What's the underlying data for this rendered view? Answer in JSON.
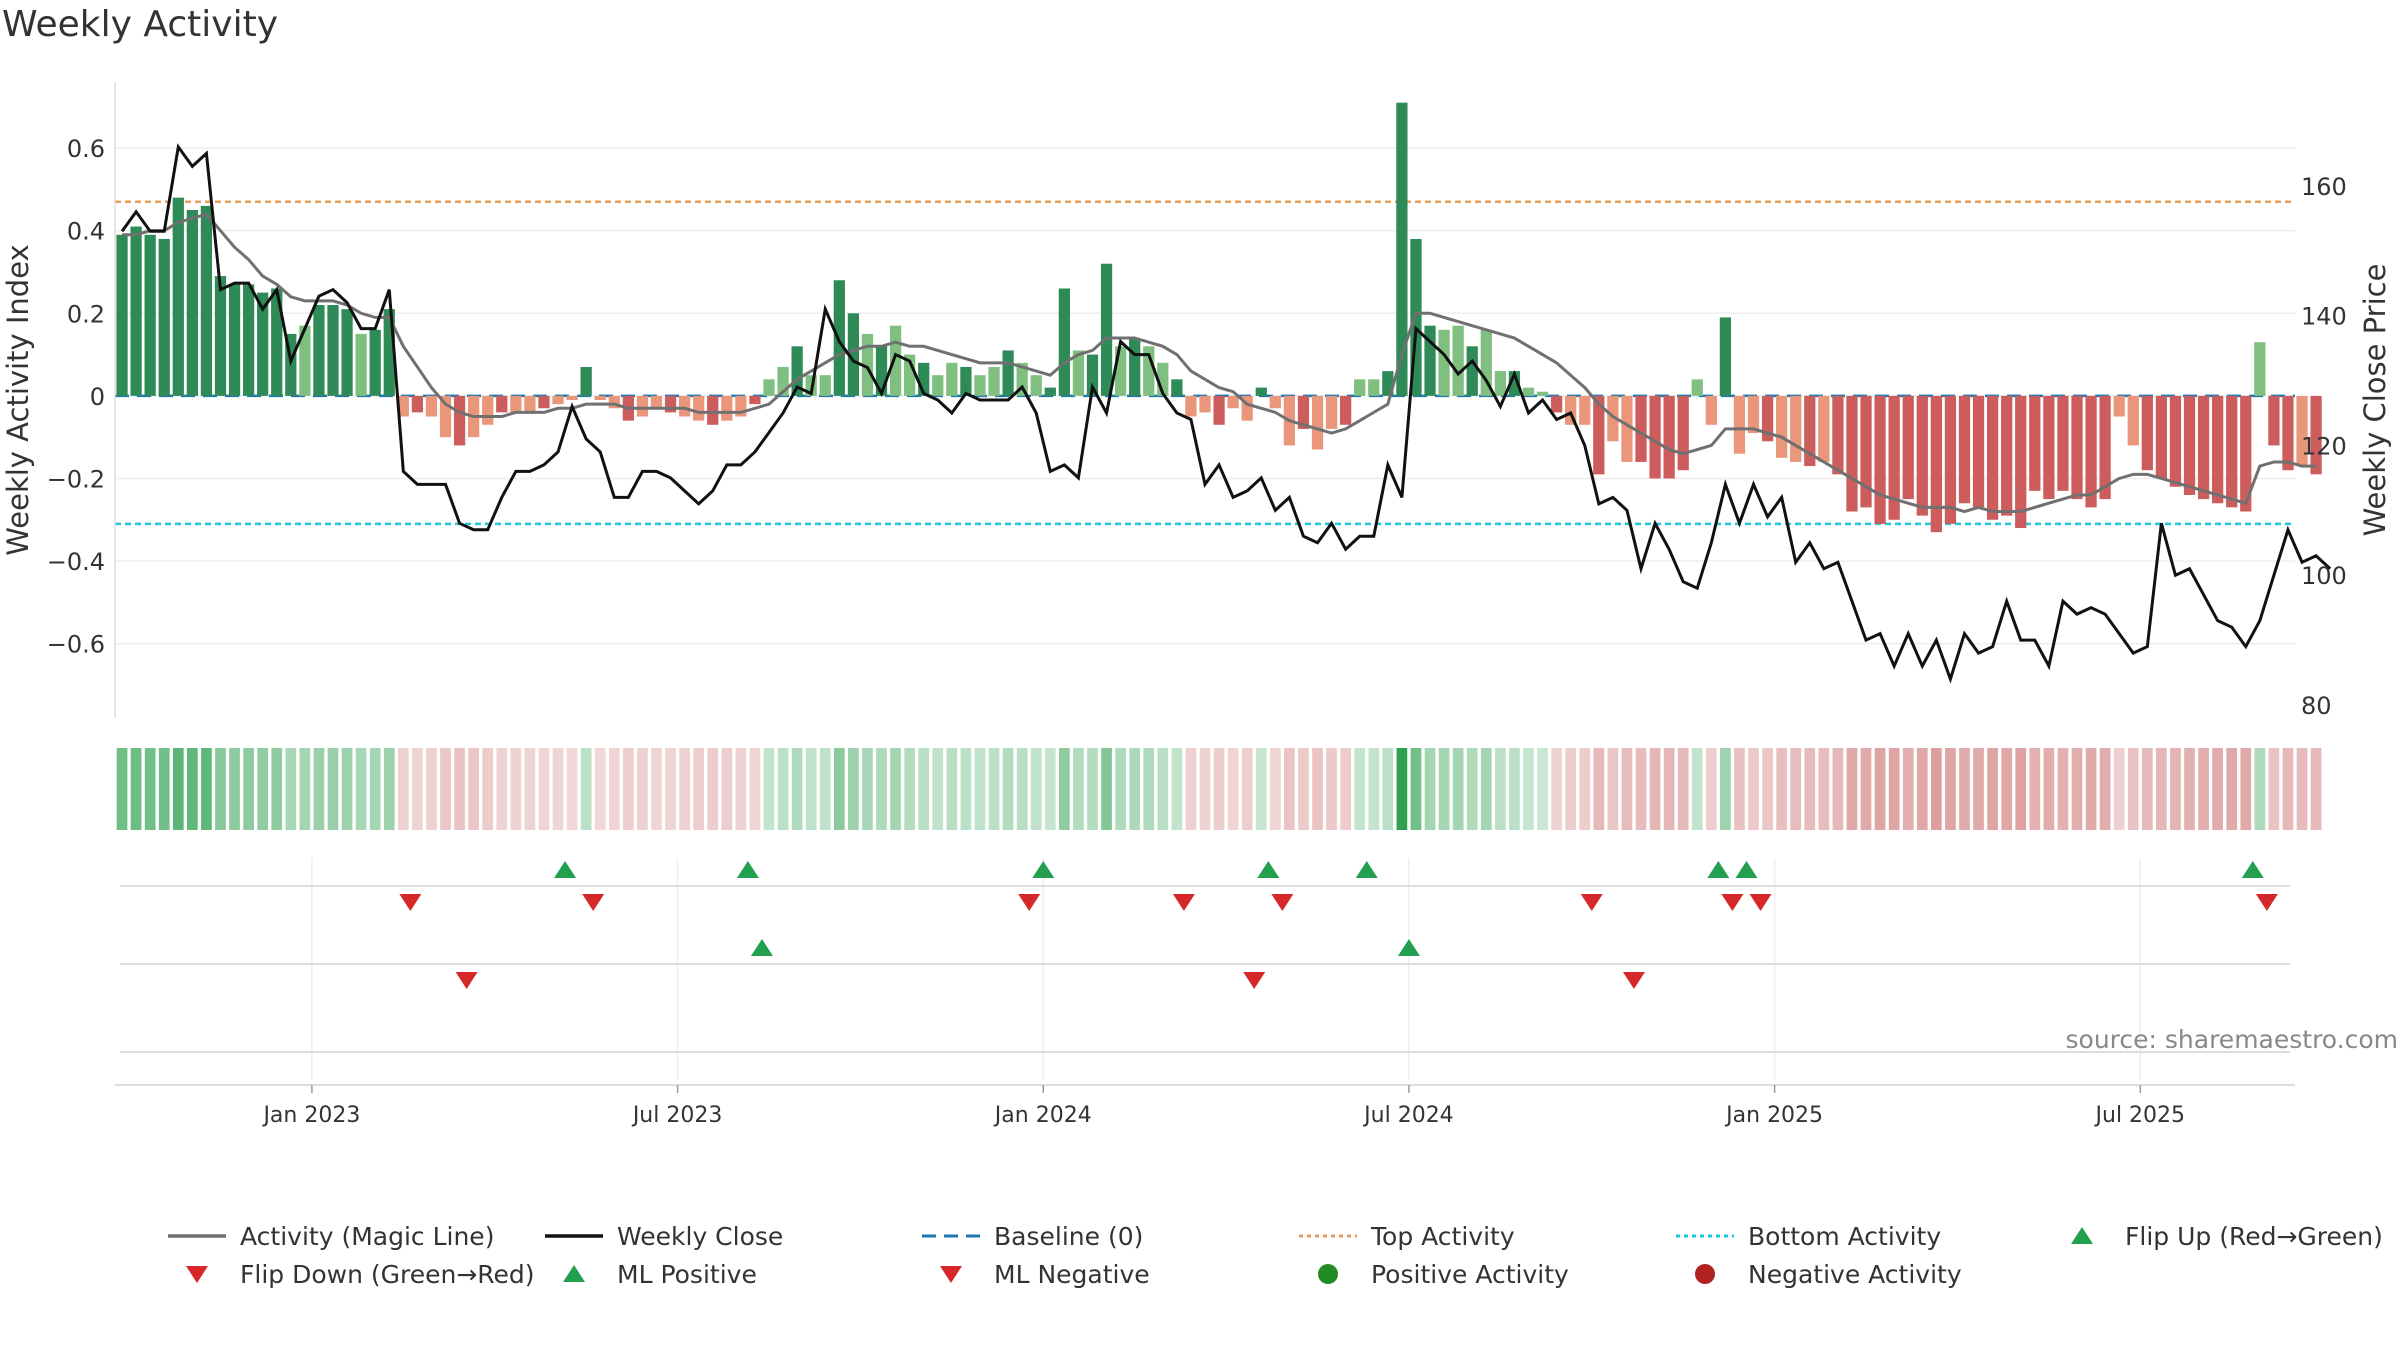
{
  "chart_data": {
    "type": "bar",
    "title": "Weekly Activity",
    "ylabel_left": "Weekly Activity Index",
    "ylabel_right": "Weekly Close Price",
    "source": "source: sharemaestro.com",
    "x_start_week": 0,
    "x_range_weeks": [
      0,
      155
    ],
    "x_ticks": [
      {
        "label": "Jan 2023",
        "week": 14
      },
      {
        "label": "Jul 2023",
        "week": 40
      },
      {
        "label": "Jan 2024",
        "week": 66
      },
      {
        "label": "Jul 2024",
        "week": 92
      },
      {
        "label": "Jan 2025",
        "week": 118
      },
      {
        "label": "Jul 2025",
        "week": 144
      }
    ],
    "left_axis": {
      "ylim": [
        -0.78,
        0.76
      ],
      "ticks": [
        0.6,
        0.4,
        0.2,
        0,
        -0.2,
        -0.4,
        -0.6
      ],
      "tick_labels": [
        "0.6",
        "0.4",
        "0.2",
        "0",
        "−0.2",
        "−0.4",
        "−0.6"
      ]
    },
    "right_axis": {
      "ylim": [
        78,
        176
      ],
      "ticks": [
        160,
        140,
        120,
        100,
        80
      ],
      "tick_labels": [
        "160",
        "140",
        "120",
        "100",
        "80"
      ]
    },
    "top_activity": 0.47,
    "bottom_activity": -0.31,
    "activity": [
      0.39,
      0.41,
      0.39,
      0.38,
      0.48,
      0.45,
      0.46,
      0.29,
      0.27,
      0.27,
      0.25,
      0.26,
      0.15,
      0.17,
      0.22,
      0.22,
      0.21,
      0.15,
      0.16,
      0.21,
      -0.05,
      -0.04,
      -0.05,
      -0.1,
      -0.12,
      -0.1,
      -0.07,
      -0.04,
      -0.04,
      -0.04,
      -0.03,
      -0.02,
      -0.01,
      0.07,
      -0.01,
      -0.03,
      -0.06,
      -0.05,
      -0.03,
      -0.04,
      -0.05,
      -0.06,
      -0.07,
      -0.06,
      -0.05,
      -0.02,
      0.04,
      0.07,
      0.12,
      0.05,
      0.05,
      0.28,
      0.2,
      0.15,
      0.12,
      0.17,
      0.1,
      0.08,
      0.05,
      0.08,
      0.07,
      0.05,
      0.07,
      0.11,
      0.08,
      0.05,
      0.02,
      0.26,
      0.11,
      0.1,
      0.32,
      0.12,
      0.14,
      0.12,
      0.08,
      0.04,
      -0.05,
      -0.04,
      -0.07,
      -0.03,
      -0.06,
      0.02,
      -0.03,
      -0.12,
      -0.08,
      -0.13,
      -0.08,
      -0.07,
      0.04,
      0.04,
      0.06,
      0.71,
      0.38,
      0.17,
      0.16,
      0.17,
      0.12,
      0.16,
      0.06,
      0.06,
      0.02,
      0.01,
      -0.04,
      -0.07,
      -0.07,
      -0.19,
      -0.11,
      -0.16,
      -0.16,
      -0.2,
      -0.2,
      -0.18,
      0.04,
      -0.07,
      0.19,
      -0.14,
      -0.09,
      -0.11,
      -0.15,
      -0.16,
      -0.17,
      -0.16,
      -0.19,
      -0.28,
      -0.27,
      -0.31,
      -0.3,
      -0.25,
      -0.29,
      -0.33,
      -0.31,
      -0.26,
      -0.27,
      -0.3,
      -0.29,
      -0.32,
      -0.23,
      -0.25,
      -0.23,
      -0.25,
      -0.27,
      -0.25,
      -0.05,
      -0.12,
      -0.18,
      -0.2,
      -0.22,
      -0.24,
      -0.25,
      -0.26,
      -0.27,
      -0.28,
      0.13,
      -0.12,
      -0.18,
      -0.17,
      -0.19
    ],
    "magic_line": [
      0.39,
      0.39,
      0.4,
      0.4,
      0.42,
      0.43,
      0.44,
      0.4,
      0.36,
      0.33,
      0.29,
      0.27,
      0.24,
      0.23,
      0.23,
      0.23,
      0.22,
      0.2,
      0.19,
      0.19,
      0.12,
      0.07,
      0.02,
      -0.02,
      -0.04,
      -0.05,
      -0.05,
      -0.05,
      -0.04,
      -0.04,
      -0.04,
      -0.03,
      -0.03,
      -0.02,
      -0.02,
      -0.02,
      -0.03,
      -0.03,
      -0.03,
      -0.03,
      -0.03,
      -0.04,
      -0.04,
      -0.04,
      -0.04,
      -0.03,
      -0.02,
      0.01,
      0.04,
      0.06,
      0.08,
      0.1,
      0.11,
      0.12,
      0.12,
      0.13,
      0.12,
      0.12,
      0.11,
      0.1,
      0.09,
      0.08,
      0.08,
      0.08,
      0.07,
      0.06,
      0.05,
      0.08,
      0.1,
      0.11,
      0.14,
      0.14,
      0.14,
      0.13,
      0.12,
      0.1,
      0.06,
      0.04,
      0.02,
      0.01,
      -0.02,
      -0.03,
      -0.04,
      -0.06,
      -0.07,
      -0.08,
      -0.09,
      -0.08,
      -0.06,
      -0.04,
      -0.02,
      0.1,
      0.2,
      0.2,
      0.19,
      0.18,
      0.17,
      0.16,
      0.15,
      0.14,
      0.12,
      0.1,
      0.08,
      0.05,
      0.02,
      -0.02,
      -0.05,
      -0.07,
      -0.09,
      -0.11,
      -0.13,
      -0.14,
      -0.13,
      -0.12,
      -0.08,
      -0.08,
      -0.08,
      -0.09,
      -0.1,
      -0.12,
      -0.14,
      -0.16,
      -0.18,
      -0.2,
      -0.22,
      -0.24,
      -0.25,
      -0.26,
      -0.27,
      -0.27,
      -0.27,
      -0.28,
      -0.27,
      -0.28,
      -0.28,
      -0.28,
      -0.27,
      -0.26,
      -0.25,
      -0.24,
      -0.24,
      -0.22,
      -0.2,
      -0.19,
      -0.19,
      -0.2,
      -0.21,
      -0.22,
      -0.23,
      -0.24,
      -0.25,
      -0.26,
      -0.17,
      -0.16,
      -0.16,
      -0.17,
      -0.17
    ],
    "weekly_close": [
      153,
      156,
      153,
      153,
      166,
      163,
      165,
      144,
      145,
      145,
      141,
      144,
      133,
      138,
      143,
      144,
      142,
      138,
      138,
      144,
      116,
      114,
      114,
      114,
      108,
      107,
      107,
      112,
      116,
      116,
      117,
      119,
      126,
      121,
      119,
      112,
      112,
      116,
      116,
      115,
      113,
      111,
      113,
      117,
      117,
      119,
      122,
      125,
      129,
      128,
      141,
      136,
      133,
      132,
      128,
      134,
      133,
      128,
      127,
      125,
      128,
      127,
      127,
      127,
      129,
      125,
      116,
      117,
      115,
      129,
      125,
      136,
      134,
      134,
      128,
      125,
      124,
      114,
      117,
      112,
      113,
      115,
      110,
      112,
      106,
      105,
      108,
      104,
      106,
      106,
      117,
      112,
      138,
      136,
      134,
      131,
      133,
      130,
      126,
      131,
      125,
      127,
      124,
      125,
      120,
      111,
      112,
      110,
      101,
      108,
      104,
      99,
      98,
      105,
      114,
      108,
      114,
      109,
      112,
      102,
      105,
      101,
      102,
      96,
      90,
      91,
      86,
      91,
      86,
      90,
      84,
      91,
      88,
      89,
      96,
      90,
      90,
      86,
      96,
      94,
      95,
      94,
      91,
      88,
      89,
      108,
      100,
      101,
      97,
      93,
      92,
      89,
      93,
      100,
      107,
      102,
      103,
      101
    ]
  },
  "strips": {
    "flip_up_weeks": [
      32,
      45,
      66,
      82,
      89,
      114,
      116,
      152
    ],
    "flip_down_weeks": [
      21,
      34,
      65,
      76,
      83,
      105,
      115,
      117,
      153
    ],
    "ml_positive_weeks": [
      46,
      92
    ],
    "ml_negative_weeks": [
      25,
      81,
      108
    ]
  },
  "legend": {
    "items": [
      {
        "label": "Activity (Magic Line)",
        "symbol": "line",
        "color": "#707070"
      },
      {
        "label": "Weekly Close",
        "symbol": "line",
        "color": "#111111"
      },
      {
        "label": "Baseline (0)",
        "symbol": "dash",
        "color": "#1f77b4"
      },
      {
        "label": "Top Activity",
        "symbol": "dot-line",
        "color": "#e8a060"
      },
      {
        "label": "Bottom Activity",
        "symbol": "dot-line",
        "color": "#1ec8d8"
      },
      {
        "label": "Flip Up (Red→Green)",
        "symbol": "tri-up",
        "color": "#22a050"
      },
      {
        "label": "Flip Down (Green→Red)",
        "symbol": "tri-down",
        "color": "#d62828"
      },
      {
        "label": "ML Positive",
        "symbol": "tri-up",
        "color": "#22a050"
      },
      {
        "label": "ML Negative",
        "symbol": "tri-down",
        "color": "#d62828"
      },
      {
        "label": "Positive Activity",
        "symbol": "circle",
        "color": "#228b22"
      },
      {
        "label": "Negative Activity",
        "symbol": "circle",
        "color": "#b22222"
      }
    ]
  },
  "colors": {
    "strong_pos": "#2e8b57",
    "weak_pos": "#7fbf7f",
    "strong_neg": "#cd5c5c",
    "weak_neg": "#e9967a",
    "magic_line": "#707070",
    "close": "#111111",
    "baseline": "#1f77b4",
    "top": "#e8a060",
    "bottom": "#1ec8d8"
  }
}
